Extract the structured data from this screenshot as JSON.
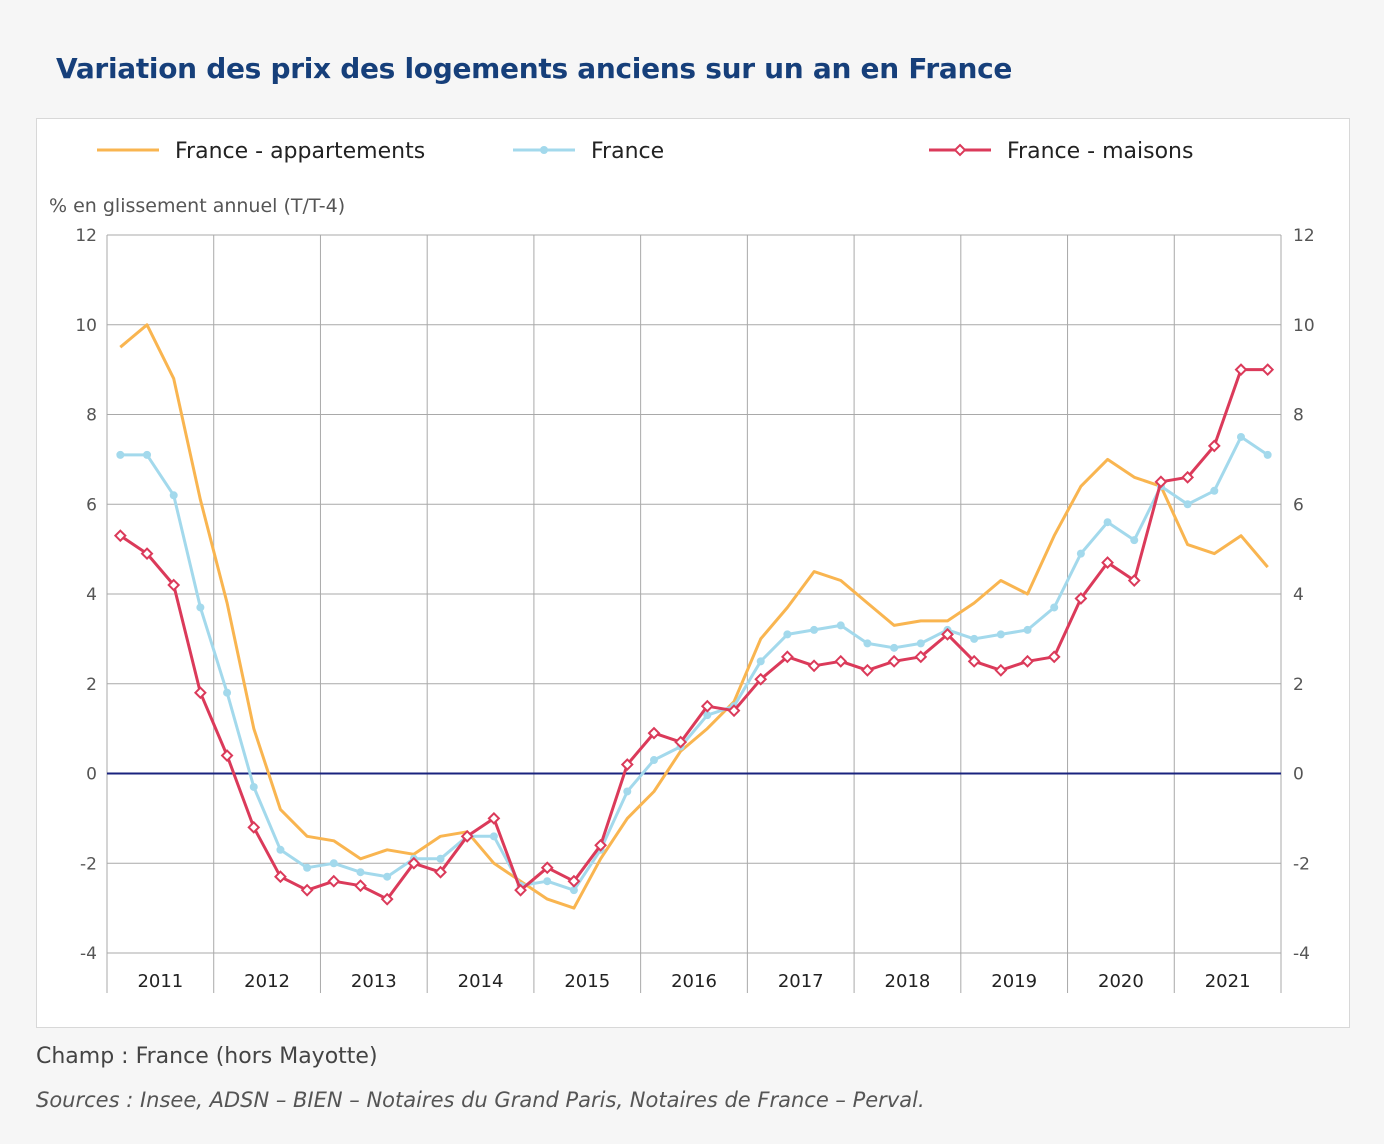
{
  "title": "Variation des prix des logements anciens sur un an en France",
  "caption": "Champ : France (hors Mayotte)",
  "sources": "Sources : Insee, ADSN – BIEN – Notaires du Grand Paris, Notaires de France – Perval.",
  "colors": {
    "appartements": "#f9b550",
    "france": "#a3d9ec",
    "maisons": "#db3a5a",
    "zero_line": "#1a237e",
    "grid": "#a9a9a9",
    "title": "#163f7a"
  },
  "chart_data": {
    "type": "line",
    "ylabel": "% en glissement annuel (T/T-4)",
    "ylim": [
      -4,
      12
    ],
    "yticks": [
      12,
      10,
      8,
      6,
      4,
      2,
      0,
      -2,
      -4
    ],
    "year_labels": [
      "2011",
      "2012",
      "2013",
      "2014",
      "2015",
      "2016",
      "2017",
      "2018",
      "2019",
      "2020",
      "2021"
    ],
    "x": [
      "2011-T1",
      "2011-T2",
      "2011-T3",
      "2011-T4",
      "2012-T1",
      "2012-T2",
      "2012-T3",
      "2012-T4",
      "2013-T1",
      "2013-T2",
      "2013-T3",
      "2013-T4",
      "2014-T1",
      "2014-T2",
      "2014-T3",
      "2014-T4",
      "2015-T1",
      "2015-T2",
      "2015-T3",
      "2015-T4",
      "2016-T1",
      "2016-T2",
      "2016-T3",
      "2016-T4",
      "2017-T1",
      "2017-T2",
      "2017-T3",
      "2017-T4",
      "2018-T1",
      "2018-T2",
      "2018-T3",
      "2018-T4",
      "2019-T1",
      "2019-T2",
      "2019-T3",
      "2019-T4",
      "2020-T1",
      "2020-T2",
      "2020-T3",
      "2020-T4",
      "2021-T1",
      "2021-T2",
      "2021-T3",
      "2021-T4"
    ],
    "legend_position": "top",
    "series": [
      {
        "name": "France - appartements",
        "key": "appartements",
        "marker": "none",
        "values": [
          9.5,
          10.0,
          8.8,
          6.1,
          3.8,
          1.0,
          -0.8,
          -1.4,
          -1.5,
          -1.9,
          -1.7,
          -1.8,
          -1.4,
          -1.3,
          -2.0,
          -2.4,
          -2.8,
          -3.0,
          -1.9,
          -1.0,
          -0.4,
          0.5,
          1.0,
          1.6,
          3.0,
          3.7,
          4.5,
          4.3,
          3.8,
          3.3,
          3.4,
          3.4,
          3.8,
          4.3,
          4.0,
          5.3,
          6.4,
          7.0,
          6.6,
          6.4,
          5.1,
          4.9,
          5.3,
          4.6
        ]
      },
      {
        "name": "France",
        "key": "france",
        "marker": "dot",
        "values": [
          7.1,
          7.1,
          6.2,
          3.7,
          1.8,
          -0.3,
          -1.7,
          -2.1,
          -2.0,
          -2.2,
          -2.3,
          -1.9,
          -1.9,
          -1.4,
          -1.4,
          -2.5,
          -2.4,
          -2.6,
          -1.7,
          -0.4,
          0.3,
          0.6,
          1.3,
          1.5,
          2.5,
          3.1,
          3.2,
          3.3,
          2.9,
          2.8,
          2.9,
          3.2,
          3.0,
          3.1,
          3.2,
          3.7,
          4.9,
          5.6,
          5.2,
          6.4,
          6.0,
          6.3,
          7.5,
          7.1
        ]
      },
      {
        "name": "France - maisons",
        "key": "maisons",
        "marker": "diamond",
        "values": [
          5.3,
          4.9,
          4.2,
          1.8,
          0.4,
          -1.2,
          -2.3,
          -2.6,
          -2.4,
          -2.5,
          -2.8,
          -2.0,
          -2.2,
          -1.4,
          -1.0,
          -2.6,
          -2.1,
          -2.4,
          -1.6,
          0.2,
          0.9,
          0.7,
          1.5,
          1.4,
          2.1,
          2.6,
          2.4,
          2.5,
          2.3,
          2.5,
          2.6,
          3.1,
          2.5,
          2.3,
          2.5,
          2.6,
          3.9,
          4.7,
          4.3,
          6.5,
          6.6,
          7.3,
          9.0,
          9.0
        ]
      }
    ]
  }
}
